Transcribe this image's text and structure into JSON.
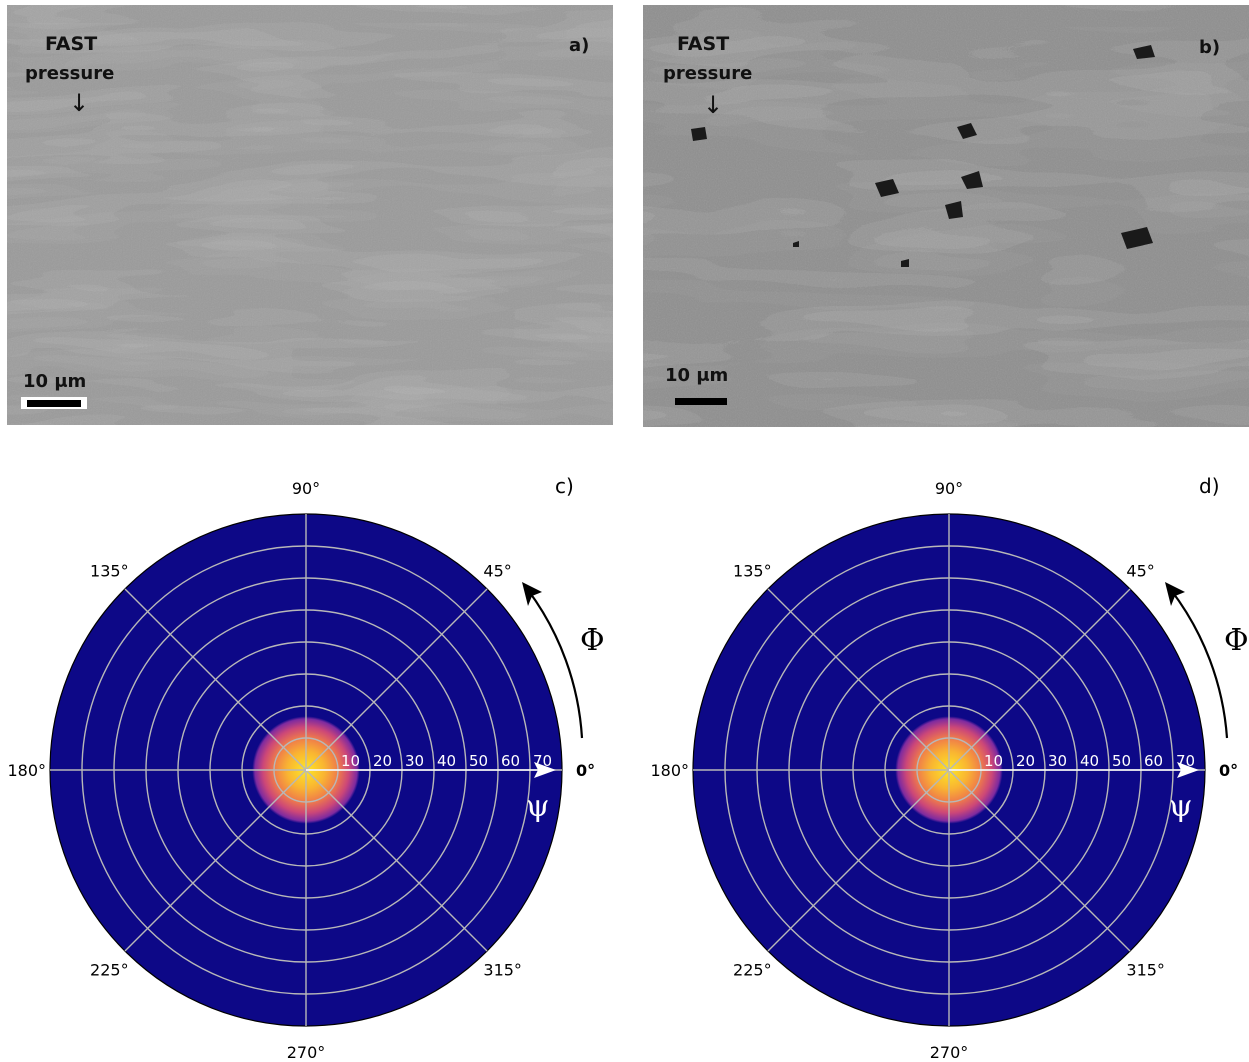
{
  "panels": {
    "a": {
      "label": "a)",
      "fast": "FAST",
      "pressure": "pressure",
      "scale_bar": "10 μm"
    },
    "b": {
      "label": "b)",
      "fast": "FAST",
      "pressure": "pressure",
      "scale_bar": "10 μm"
    },
    "c": {
      "label": "c)",
      "phi_symbol": "Φ",
      "psi_symbol": "ψ"
    },
    "d": {
      "label": "d)",
      "phi_symbol": "Φ",
      "psi_symbol": "ψ"
    }
  },
  "chart_data": [
    {
      "type": "heatmap",
      "panel": "c",
      "projection": "polar",
      "angle_tick_labels": [
        "0°",
        "45°",
        "90°",
        "135°",
        "180°",
        "225°",
        "270°",
        "315°"
      ],
      "radial_tick_labels": [
        "10",
        "20",
        "30",
        "40",
        "50",
        "60",
        "70"
      ],
      "radial_range": [
        0,
        80
      ],
      "grid": true,
      "peak": {
        "psi": 0,
        "phi": 0,
        "spread_deg": 8
      },
      "colors": {
        "background": "#0d0887",
        "mid": "#cc4778",
        "peak": "#f9e03a"
      }
    },
    {
      "type": "heatmap",
      "panel": "d",
      "projection": "polar",
      "angle_tick_labels": [
        "0°",
        "45°",
        "90°",
        "135°",
        "180°",
        "225°",
        "270°",
        "315°"
      ],
      "radial_tick_labels": [
        "10",
        "20",
        "30",
        "40",
        "50",
        "60",
        "70"
      ],
      "radial_range": [
        0,
        80
      ],
      "grid": true,
      "peak": {
        "psi": 0,
        "phi": 0,
        "spread_deg": 8
      },
      "colors": {
        "background": "#0d0887",
        "mid": "#cc4778",
        "peak": "#f9e03a"
      }
    }
  ]
}
